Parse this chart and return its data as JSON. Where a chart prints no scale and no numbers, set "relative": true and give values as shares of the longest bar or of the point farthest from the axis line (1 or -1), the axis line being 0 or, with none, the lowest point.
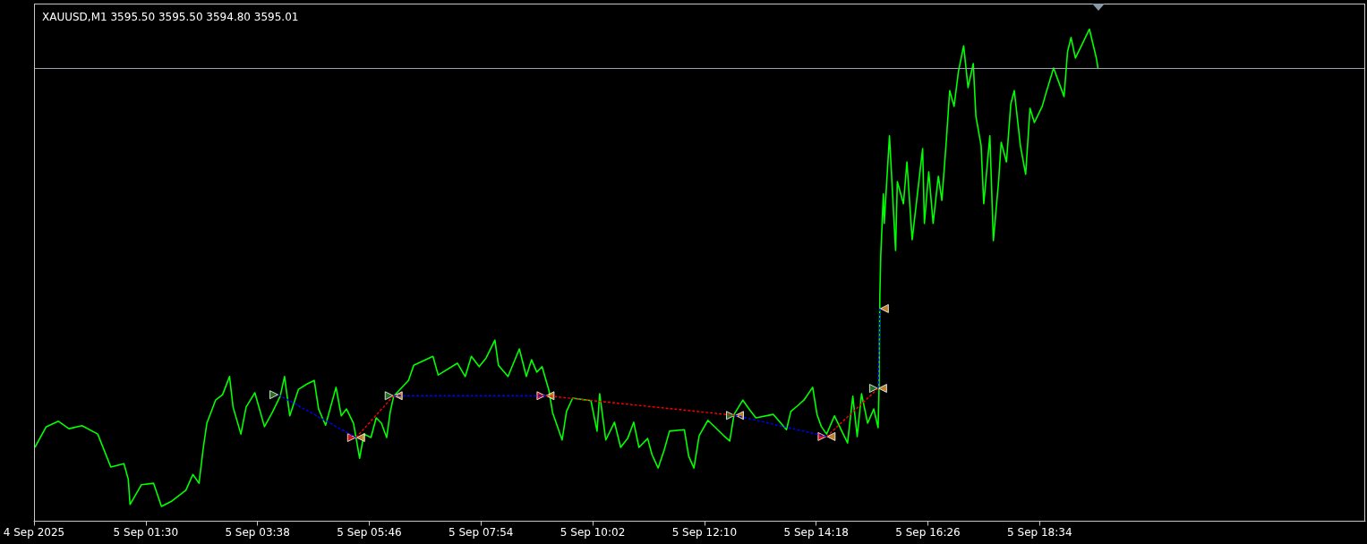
{
  "chart_data": {
    "type": "line",
    "title": "XAUUSD,M1 3595.50 3595.50 3594.80 3595.01",
    "relative": true,
    "xlim": [
      "2025-09-04T23:22",
      "2025-09-06T00:47"
    ],
    "xticks": [
      {
        "value": "2025-09-04T23:22",
        "label": "4 Sep 2025"
      },
      {
        "value": "2025-09-05T01:30",
        "label": "5 Sep 01:30"
      },
      {
        "value": "2025-09-05T03:38",
        "label": "5 Sep 03:38"
      },
      {
        "value": "2025-09-05T05:46",
        "label": "5 Sep 05:46"
      },
      {
        "value": "2025-09-05T07:54",
        "label": "5 Sep 07:54"
      },
      {
        "value": "2025-09-05T10:02",
        "label": "5 Sep 10:02"
      },
      {
        "value": "2025-09-05T12:10",
        "label": "5 Sep 12:10"
      },
      {
        "value": "2025-09-05T14:18",
        "label": "5 Sep 14:18"
      },
      {
        "value": "2025-09-05T16:26",
        "label": "5 Sep 16:26"
      },
      {
        "value": "2025-09-05T18:34",
        "label": "5 Sep 18:34"
      }
    ],
    "ref_lines": [
      {
        "axis": "y",
        "value": 0.919,
        "color": "#9aa3ad",
        "line_style": "solid"
      }
    ],
    "series": [
      {
        "color": "#00ff00",
        "marker": "none",
        "line_style": "solid",
        "x": [
          "2025-09-04T23:23",
          "2025-09-04T23:36",
          "2025-09-04T23:50",
          "2025-09-05T00:02",
          "2025-09-05T00:17",
          "2025-09-05T00:35",
          "2025-09-05T00:50",
          "2025-09-05T01:05",
          "2025-09-05T01:10",
          "2025-09-05T01:12",
          "2025-09-05T01:25",
          "2025-09-05T01:39",
          "2025-09-05T01:48",
          "2025-09-05T02:00",
          "2025-09-05T02:16",
          "2025-09-05T02:24",
          "2025-09-05T02:31",
          "2025-09-05T02:36",
          "2025-09-05T02:40",
          "2025-09-05T02:50",
          "2025-09-05T02:58",
          "2025-09-05T03:06",
          "2025-09-05T03:10",
          "2025-09-05T03:19",
          "2025-09-05T03:25",
          "2025-09-05T03:35",
          "2025-09-05T03:46",
          "2025-09-05T03:55",
          "2025-09-05T04:04",
          "2025-09-05T04:09",
          "2025-09-05T04:15",
          "2025-09-05T04:25",
          "2025-09-05T04:35",
          "2025-09-05T04:43",
          "2025-09-05T04:48",
          "2025-09-05T04:56",
          "2025-09-05T05:08",
          "2025-09-05T05:14",
          "2025-09-05T05:20",
          "2025-09-05T05:28",
          "2025-09-05T05:35",
          "2025-09-05T05:40",
          "2025-09-05T05:48",
          "2025-09-05T05:54",
          "2025-09-05T06:00",
          "2025-09-05T06:06",
          "2025-09-05T06:10",
          "2025-09-05T06:14",
          "2025-09-05T06:31",
          "2025-09-05T06:37",
          "2025-09-05T06:59",
          "2025-09-05T07:05",
          "2025-09-05T07:27",
          "2025-09-05T07:36",
          "2025-09-05T07:43",
          "2025-09-05T07:52",
          "2025-09-05T08:00",
          "2025-09-05T08:10",
          "2025-09-05T08:14",
          "2025-09-05T08:25",
          "2025-09-05T08:38",
          "2025-09-05T08:46",
          "2025-09-05T08:52",
          "2025-09-05T08:58",
          "2025-09-05T09:04",
          "2025-09-05T09:12",
          "2025-09-05T09:16",
          "2025-09-05T09:27",
          "2025-09-05T09:32",
          "2025-09-05T09:39",
          "2025-09-05T10:00",
          "2025-09-05T10:07",
          "2025-09-05T10:10",
          "2025-09-05T10:17",
          "2025-09-05T10:27",
          "2025-09-05T10:34",
          "2025-09-05T10:42",
          "2025-09-05T10:49",
          "2025-09-05T10:55",
          "2025-09-05T11:05",
          "2025-09-05T11:10",
          "2025-09-05T11:17",
          "2025-09-05T11:24",
          "2025-09-05T11:30",
          "2025-09-05T11:47",
          "2025-09-05T11:52",
          "2025-09-05T11:58",
          "2025-09-05T12:04",
          "2025-09-05T12:14",
          "2025-09-05T12:32",
          "2025-09-05T12:39",
          "2025-09-05T12:44",
          "2025-09-05T12:54",
          "2025-09-05T13:02",
          "2025-09-05T13:09",
          "2025-09-05T13:29",
          "2025-09-05T13:44",
          "2025-09-05T13:49",
          "2025-09-05T13:57",
          "2025-09-05T14:04",
          "2025-09-05T14:14",
          "2025-09-05T14:19",
          "2025-09-05T14:24",
          "2025-09-05T14:30",
          "2025-09-05T14:39",
          "2025-09-05T14:54",
          "2025-09-05T15:00",
          "2025-09-05T15:05",
          "2025-09-05T15:10",
          "2025-09-05T15:17",
          "2025-09-05T15:24",
          "2025-09-05T15:29",
          "2025-09-05T15:30",
          "2025-09-05T15:31",
          "2025-09-05T15:32",
          "2025-09-05T15:35",
          "2025-09-05T15:36",
          "2025-09-05T15:42",
          "2025-09-05T15:49",
          "2025-09-05T15:51",
          "2025-09-05T15:58",
          "2025-09-05T16:02",
          "2025-09-05T16:08",
          "2025-09-05T16:20",
          "2025-09-05T16:22",
          "2025-09-05T16:27",
          "2025-09-05T16:32",
          "2025-09-05T16:38",
          "2025-09-05T16:42",
          "2025-09-05T16:47",
          "2025-09-05T16:51",
          "2025-09-05T16:56",
          "2025-09-05T17:01",
          "2025-09-05T17:07",
          "2025-09-05T17:12",
          "2025-09-05T17:18",
          "2025-09-05T17:21",
          "2025-09-05T17:27",
          "2025-09-05T17:30",
          "2025-09-05T17:37",
          "2025-09-05T17:41",
          "2025-09-05T17:47",
          "2025-09-05T17:50",
          "2025-09-05T17:56",
          "2025-09-05T18:01",
          "2025-09-05T18:05",
          "2025-09-05T18:12",
          "2025-09-05T18:18",
          "2025-09-05T18:23",
          "2025-09-05T18:28",
          "2025-09-05T18:37",
          "2025-09-05T18:41",
          "2025-09-05T18:50",
          "2025-09-05T19:02",
          "2025-09-05T19:06",
          "2025-09-05T19:10",
          "2025-09-05T19:15",
          "2025-09-05T19:24",
          "2025-09-05T19:31",
          "2025-09-05T19:39",
          "2025-09-05T19:41"
        ],
        "values": [
          0.15,
          0.192,
          0.203,
          0.188,
          0.194,
          0.177,
          0.11,
          0.117,
          0.085,
          0.034,
          0.074,
          0.077,
          0.03,
          0.041,
          0.063,
          0.095,
          0.077,
          0.15,
          0.199,
          0.246,
          0.257,
          0.294,
          0.232,
          0.177,
          0.232,
          0.261,
          0.192,
          0.221,
          0.254,
          0.294,
          0.214,
          0.268,
          0.279,
          0.286,
          0.228,
          0.195,
          0.272,
          0.214,
          0.228,
          0.199,
          0.128,
          0.177,
          0.17,
          0.21,
          0.199,
          0.17,
          0.221,
          0.254,
          0.286,
          0.317,
          0.335,
          0.297,
          0.321,
          0.294,
          0.335,
          0.314,
          0.332,
          0.368,
          0.317,
          0.294,
          0.35,
          0.294,
          0.328,
          0.303,
          0.314,
          0.265,
          0.221,
          0.165,
          0.223,
          0.25,
          0.245,
          0.183,
          0.259,
          0.165,
          0.201,
          0.15,
          0.168,
          0.201,
          0.15,
          0.168,
          0.135,
          0.108,
          0.145,
          0.183,
          0.186,
          0.132,
          0.108,
          0.174,
          0.205,
          0.174,
          0.163,
          0.217,
          0.246,
          0.226,
          0.21,
          0.217,
          0.186,
          0.223,
          0.235,
          0.246,
          0.272,
          0.217,
          0.192,
          0.177,
          0.214,
          0.159,
          0.254,
          0.172,
          0.259,
          0.199,
          0.228,
          0.19,
          0.265,
          0.459,
          0.539,
          0.665,
          0.605,
          0.783,
          0.55,
          0.69,
          0.645,
          0.73,
          0.572,
          0.757,
          0.605,
          0.71,
          0.605,
          0.701,
          0.652,
          0.77,
          0.875,
          0.843,
          0.914,
          0.966,
          0.881,
          0.93,
          0.823,
          0.763,
          0.645,
          0.783,
          0.57,
          0.69,
          0.77,
          0.73,
          0.848,
          0.875,
          0.763,
          0.705,
          0.839,
          0.81,
          0.843,
          0.868,
          0.921,
          0.863,
          0.954,
          0.983,
          0.941,
          0.974,
          1,
          0.941,
          0.919
        ]
      },
      {
        "color": "#0000ff",
        "marker": "none",
        "line_style": "dotted",
        "x": [
          "2025-09-05T04:02",
          "2025-09-05T05:31"
        ],
        "values": [
          0.257,
          0.17
        ]
      },
      {
        "color": "#ff0000",
        "marker": "none",
        "line_style": "dotted",
        "x": [
          "2025-09-05T05:31",
          "2025-09-05T06:14"
        ],
        "values": [
          0.17,
          0.255
        ]
      },
      {
        "color": "#0000ff",
        "marker": "none",
        "line_style": "dotted",
        "x": [
          "2025-09-05T06:14",
          "2025-09-05T09:08"
        ],
        "values": [
          0.255,
          0.255
        ]
      },
      {
        "color": "#ff0000",
        "marker": "none",
        "line_style": "dotted",
        "x": [
          "2025-09-05T09:08",
          "2025-09-05T12:45"
        ],
        "values": [
          0.255,
          0.215
        ]
      },
      {
        "color": "#0000ff",
        "marker": "none",
        "line_style": "dotted",
        "x": [
          "2025-09-05T12:45",
          "2025-09-05T14:30"
        ],
        "values": [
          0.215,
          0.172
        ]
      },
      {
        "color": "#ff0000",
        "marker": "none",
        "line_style": "dotted",
        "x": [
          "2025-09-05T14:30",
          "2025-09-05T15:29"
        ],
        "values": [
          0.172,
          0.27
        ]
      },
      {
        "color": "#0000ff",
        "marker": "none",
        "line_style": "dotted",
        "x": [
          "2025-09-05T15:29",
          "2025-09-05T15:31"
        ],
        "values": [
          0.27,
          0.432
        ]
      },
      {
        "type": "scatter",
        "color": "#2e8b2e",
        "marker": "triangle",
        "x": [
          "2025-09-05T04:02",
          "2025-09-05T06:14",
          "2025-09-05T12:45",
          "2025-09-05T15:29"
        ],
        "values": [
          0.257,
          0.255,
          0.215,
          0.27
        ]
      },
      {
        "type": "scatter",
        "color": "#ff1a1a",
        "marker": "triangle",
        "x": [
          "2025-09-05T05:31",
          "2025-09-05T09:08",
          "2025-09-05T14:30"
        ],
        "values": [
          0.17,
          0.255,
          0.172
        ]
      },
      {
        "type": "scatter",
        "color": "#e8a33c",
        "marker": "triangle",
        "x": [
          "2025-09-05T05:31",
          "2025-09-05T06:14",
          "2025-09-05T09:08",
          "2025-09-05T12:45",
          "2025-09-05T14:30",
          "2025-09-05T15:29",
          "2025-09-05T15:31"
        ],
        "values": [
          0.17,
          0.255,
          0.255,
          0.215,
          0.172,
          0.27,
          0.432
        ]
      }
    ]
  }
}
